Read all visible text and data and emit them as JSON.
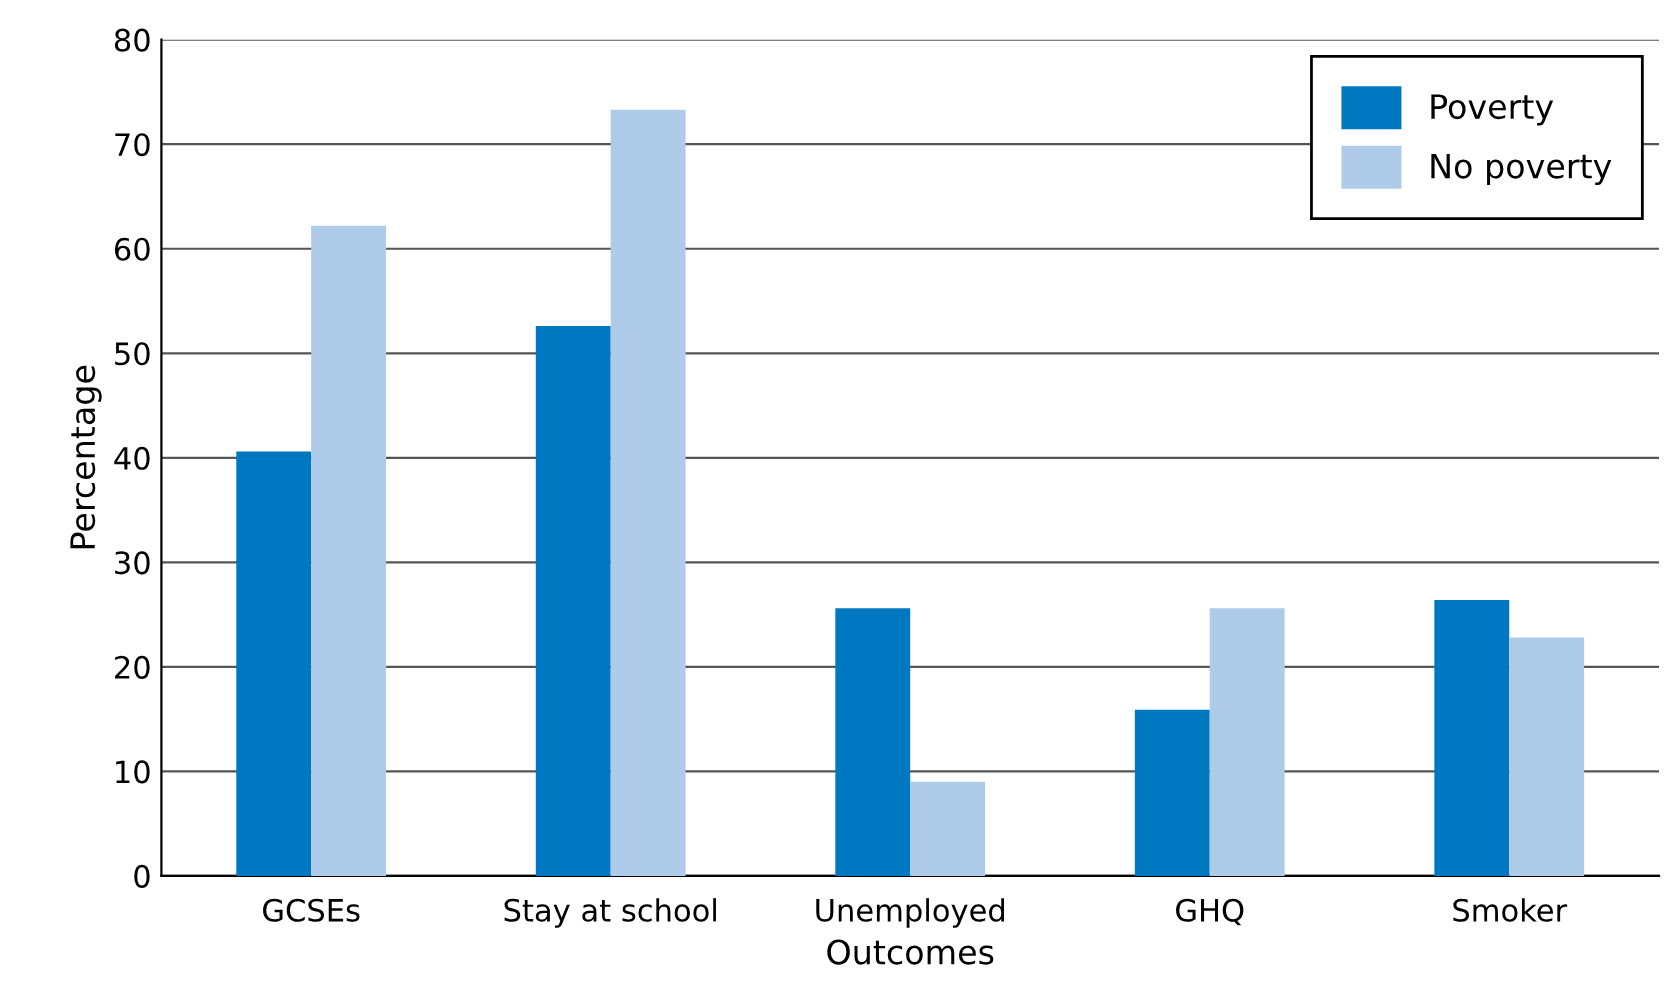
{
  "chart_data": {
    "type": "bar",
    "xlabel": "Outcomes",
    "ylabel": "Percentage",
    "categories": [
      "GCSEs",
      "Stay at school",
      "Unemployed",
      "GHQ",
      "Smoker"
    ],
    "series": [
      {
        "name": "Poverty",
        "color": "#0077c1",
        "values": [
          40.6,
          52.6,
          25.6,
          15.9,
          26.4
        ]
      },
      {
        "name": "No poverty",
        "color": "#aecbea",
        "values": [
          62.2,
          73.3,
          9.0,
          25.6,
          22.8
        ]
      }
    ],
    "ylim": [
      0,
      80
    ],
    "yticks": [
      0,
      10,
      20,
      30,
      40,
      50,
      60,
      70,
      80
    ],
    "grid": "y",
    "legend": "top right"
  }
}
